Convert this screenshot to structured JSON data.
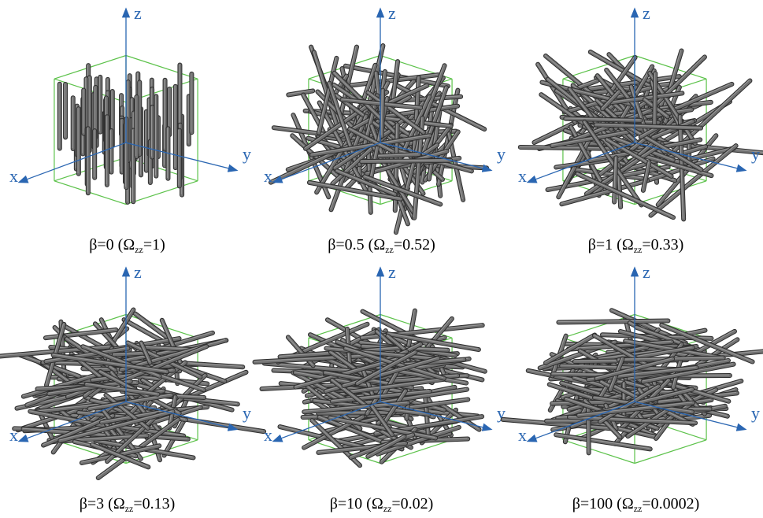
{
  "axis_labels": {
    "x": "x",
    "y": "y",
    "z": "z"
  },
  "colors": {
    "axis": "#2a66b2",
    "box": "#5cc24a",
    "fiber": "#707070",
    "fiber_edge": "#2e2e2e"
  },
  "panels": [
    {
      "id": "p1",
      "beta_text": "β=0 (",
      "omega": "Ω",
      "sub": "zz",
      "value_text": "=1)",
      "beta": 0,
      "omega_zz": 1,
      "fibers": 70,
      "tilt": 0.0,
      "hspread": 0.0
    },
    {
      "id": "p2",
      "beta_text": "β=0.5 (",
      "omega": "Ω",
      "sub": "zz",
      "value_text": "=0.52)",
      "beta": 0.5,
      "omega_zz": 0.52,
      "fibers": 110,
      "tilt": 0.9,
      "hspread": 1.0
    },
    {
      "id": "p3",
      "beta_text": "β=1 (",
      "omega": "Ω",
      "sub": "zz",
      "value_text": "=0.33)",
      "beta": 1,
      "omega_zz": 0.33,
      "fibers": 110,
      "tilt": 1.2,
      "hspread": 1.1
    },
    {
      "id": "p4",
      "beta_text": "β=3 (",
      "omega": "Ω",
      "sub": "zz",
      "value_text": "=0.13)",
      "beta": 3,
      "omega_zz": 0.13,
      "fibers": 130,
      "tilt": 1.45,
      "hspread": 1.2
    },
    {
      "id": "p5",
      "beta_text": "β=10 (",
      "omega": "Ω",
      "sub": "zz",
      "value_text": "=0.02)",
      "beta": 10,
      "omega_zz": 0.02,
      "fibers": 130,
      "tilt": 1.55,
      "hspread": 1.2
    },
    {
      "id": "p6",
      "beta_text": "β=100 (",
      "omega": "Ω",
      "sub": "zz",
      "value_text": "=0.0002)",
      "beta": 100,
      "omega_zz": 0.0002,
      "fibers": 130,
      "tilt": 1.57,
      "hspread": 1.2
    }
  ]
}
